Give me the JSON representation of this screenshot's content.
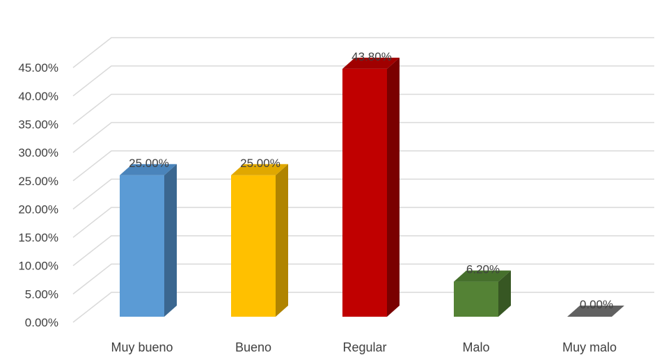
{
  "chart_data": {
    "type": "bar",
    "categories": [
      "Muy bueno",
      "Bueno",
      "Regular",
      "Malo",
      "Muy malo"
    ],
    "values": [
      25.0,
      25.0,
      43.8,
      6.2,
      0.0
    ],
    "data_labels": [
      "25.00%",
      "25.00%",
      "43.80%",
      "6.20%",
      "0.00%"
    ],
    "y_ticks": [
      "0.00%",
      "5.00%",
      "10.00%",
      "15.00%",
      "20.00%",
      "25.00%",
      "30.00%",
      "35.00%",
      "40.00%",
      "45.00%"
    ],
    "ylim": [
      0,
      45
    ],
    "y_unit": "%",
    "grid": true,
    "legend": "none",
    "style": "3d-column",
    "colors": [
      {
        "front": "#5b9bd5",
        "side": "#3b6790",
        "top": "#4a84bb"
      },
      {
        "front": "#ffc000",
        "side": "#b08400",
        "top": "#e0a800"
      },
      {
        "front": "#c00000",
        "side": "#7a0000",
        "top": "#a00000"
      },
      {
        "front": "#548235",
        "side": "#375723",
        "top": "#46702c"
      },
      {
        "front": "#a5a5a5",
        "side": "#5a5a5a",
        "top": "#616161"
      }
    ]
  }
}
